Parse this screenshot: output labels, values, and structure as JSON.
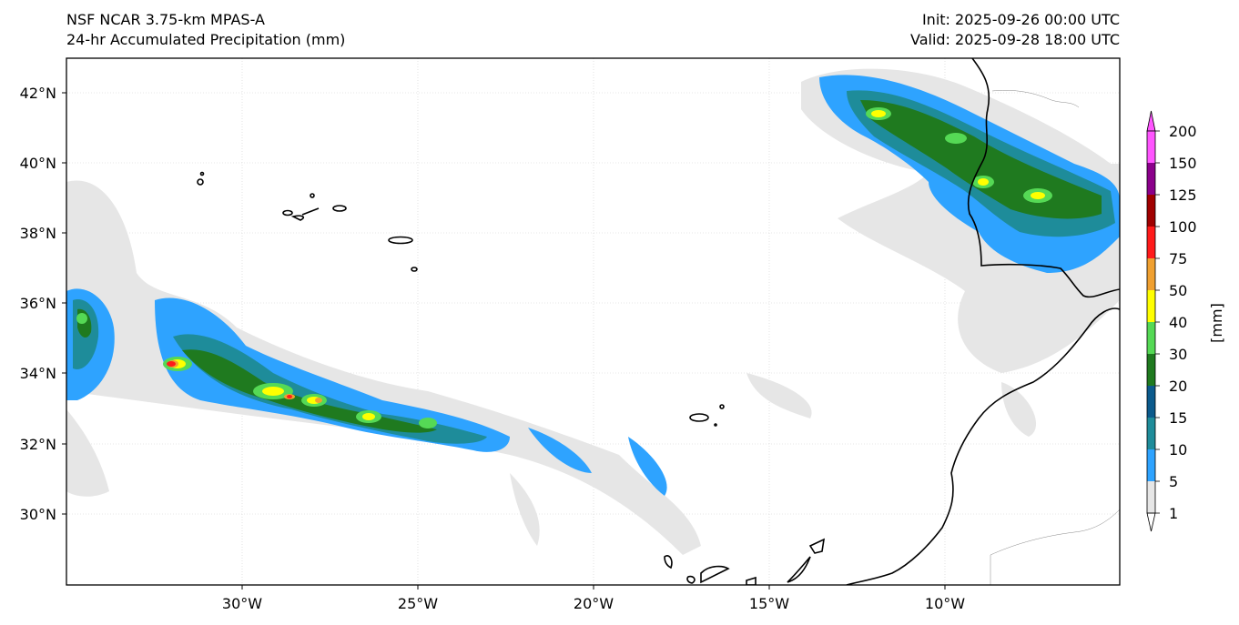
{
  "title": {
    "left_line1": "NSF NCAR 3.75-km MPAS-A",
    "left_line2": "24-hr Accumulated Precipitation (mm)",
    "right_line1": "Init: 2025-09-26 00:00 UTC",
    "right_line2": "Valid: 2025-09-28 18:00 UTC"
  },
  "map": {
    "lon_range": [
      -35,
      -5
    ],
    "lat_range": [
      28,
      43
    ],
    "lon_ticks": [
      "30°W",
      "25°W",
      "20°W",
      "15°W",
      "10°W"
    ],
    "lat_ticks": [
      "42°N",
      "40°N",
      "38°N",
      "36°N",
      "34°N",
      "32°N",
      "30°N"
    ],
    "gridlines": true
  },
  "colorbar": {
    "label": "[mm]",
    "levels": [
      "1",
      "5",
      "10",
      "15",
      "20",
      "30",
      "40",
      "50",
      "75",
      "100",
      "125",
      "150",
      "200"
    ],
    "colors": [
      "#e6e6e6",
      "#2ea3ff",
      "#1e8c9a",
      "#0b5a8c",
      "#1f7a1f",
      "#55d955",
      "#ffff00",
      "#f0a030",
      "#ff1a1a",
      "#a00000",
      "#8b008b",
      "#ff55ff"
    ]
  }
}
